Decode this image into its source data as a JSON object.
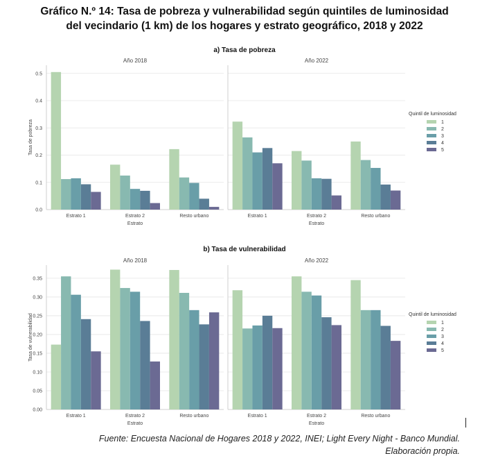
{
  "title_line1": "Gráfico N.º 14: Tasa de pobreza y vulnerabilidad según quintiles de luminosidad",
  "title_line2": "del vecindario (1 km) de los hogares y estrato geográfico, 2018 y 2022",
  "source_line1": "Fuente: Encuesta Nacional de Hogares 2018 y 2022, INEI; Light Every Night - Banco Mundial.",
  "source_line2": "Elaboración propia.",
  "colors": [
    "#b5d4b0",
    "#88b9b0",
    "#699ea8",
    "#5a7d96",
    "#6b6a93"
  ],
  "chart_data": [
    {
      "type": "bar",
      "title": "a) Tasa de pobreza",
      "ylabel": "Tasa de pobreza",
      "xlabel": "Estrato",
      "ylim": [
        0,
        0.53
      ],
      "yticks": [
        "0.0",
        "0.1",
        "0.2",
        "0.3",
        "0.4",
        "0.5"
      ],
      "legend_title": "Quintil de luminosidad",
      "legend_placement": "right",
      "grid": true,
      "categories": [
        "Estrato 1",
        "Estrato 2",
        "Resto urbano"
      ],
      "series_names": [
        "1",
        "2",
        "3",
        "4",
        "5"
      ],
      "panels": [
        {
          "title": "Año 2018",
          "values": [
            [
              0.505,
              0.112,
              0.115,
              0.093,
              0.065
            ],
            [
              0.165,
              0.125,
              0.076,
              0.069,
              0.024
            ],
            [
              0.222,
              0.118,
              0.098,
              0.04,
              0.01
            ]
          ]
        },
        {
          "title": "Año 2022",
          "values": [
            [
              0.323,
              0.265,
              0.21,
              0.226,
              0.17
            ],
            [
              0.215,
              0.18,
              0.115,
              0.113,
              0.052
            ],
            [
              0.25,
              0.182,
              0.153,
              0.092,
              0.07
            ]
          ]
        }
      ]
    },
    {
      "type": "bar",
      "title": "b) Tasa de vulnerabilidad",
      "ylabel": "Tasa de vulnerabilidad",
      "xlabel": "Estrato",
      "ylim": [
        0,
        0.385
      ],
      "yticks": [
        "0.00",
        "0.05",
        "0.10",
        "0.15",
        "0.20",
        "0.25",
        "0.30",
        "0.35"
      ],
      "legend_title": "Quintil de luminosidad",
      "legend_placement": "right",
      "grid": true,
      "categories": [
        "Estrato 1",
        "Estrato 2",
        "Resto urbano"
      ],
      "series_names": [
        "1",
        "2",
        "3",
        "4",
        "5"
      ],
      "panels": [
        {
          "title": "Año 2018",
          "values": [
            [
              0.173,
              0.355,
              0.306,
              0.241,
              0.155
            ],
            [
              0.373,
              0.324,
              0.314,
              0.236,
              0.128
            ],
            [
              0.372,
              0.311,
              0.265,
              0.227,
              0.259
            ]
          ]
        },
        {
          "title": "Año 2022",
          "values": [
            [
              0.318,
              0.216,
              0.224,
              0.25,
              0.217
            ],
            [
              0.355,
              0.314,
              0.304,
              0.246,
              0.225
            ],
            [
              0.345,
              0.265,
              0.265,
              0.223,
              0.183
            ]
          ]
        }
      ]
    }
  ]
}
